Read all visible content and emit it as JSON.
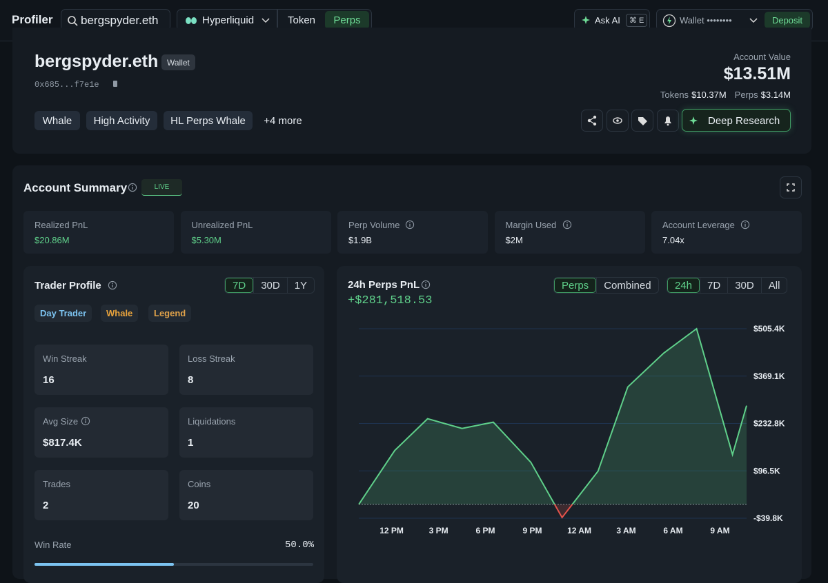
{
  "nav": {
    "brand": "Profiler",
    "search": "bergspyder.eth",
    "chain": "Hyperliquid",
    "tabs": [
      "Token",
      "Perps"
    ],
    "ask_ai": "Ask AI",
    "shortcut": "⌘ E",
    "wallet": "Wallet ••••••••",
    "deposit": "Deposit"
  },
  "profile": {
    "name": "bergspyder.eth",
    "badge": "Wallet",
    "address": "0x685...f7e1e",
    "tags": [
      "Whale",
      "High Activity",
      "HL Perps Whale",
      "+4 more"
    ],
    "account_value_label": "Account Value",
    "account_value": "$13.51M",
    "tokens_label": "Tokens",
    "tokens": "$10.37M",
    "perps_label": "Perps",
    "perps": "$3.14M",
    "deep_research": "Deep Research"
  },
  "summary": {
    "title": "Account Summary",
    "live": "LIVE",
    "stats": [
      {
        "label": "Realized PnL",
        "value": "$20.86M"
      },
      {
        "label": "Unrealized PnL",
        "value": "$5.30M"
      },
      {
        "label": "Perp Volume",
        "value": "$1.9B"
      },
      {
        "label": "Margin Used",
        "value": "$2M"
      },
      {
        "label": "Account Leverage",
        "value": "7.04x"
      }
    ]
  },
  "trader_profile": {
    "title": "Trader Profile",
    "periods": [
      "7D",
      "30D",
      "1Y"
    ],
    "badges": [
      "Day Trader",
      "Whale",
      "Legend"
    ],
    "stats": [
      {
        "label": "Win Streak",
        "value": "16"
      },
      {
        "label": "Loss Streak",
        "value": "8"
      },
      {
        "label": "Avg Size",
        "value": "$817.4K"
      },
      {
        "label": "Liquidations",
        "value": "1"
      },
      {
        "label": "Trades",
        "value": "2"
      },
      {
        "label": "Coins",
        "value": "20"
      }
    ],
    "win_rate_label": "Win Rate",
    "win_rate": {
      "value": 50,
      "label": "50.0%"
    }
  },
  "chart_data": {
    "type": "line",
    "title": "24h Perps PnL",
    "total": "+$281,518.53",
    "modes": [
      "Perps",
      "Combined"
    ],
    "periods": [
      "24h",
      "7D",
      "30D",
      "All"
    ],
    "x": [
      -2.1,
      0.2,
      2.3,
      4.5,
      6.5,
      8.9,
      10.9,
      13.2,
      15.1,
      17.4,
      19.5,
      21.8,
      22.7
    ],
    "values": [
      0,
      155000,
      246400,
      218600,
      236500,
      121200,
      -37800,
      95400,
      337800,
      435200,
      505400,
      143100,
      284100
    ],
    "color": "#5fd08a",
    "negative_color": "#e5534b",
    "xlim": [
      -2.1,
      22.7
    ],
    "ylim": [
      -39800,
      505400
    ],
    "xticks": [
      {
        "value": 0,
        "label": "12 PM"
      },
      {
        "value": 3,
        "label": "3 PM"
      },
      {
        "value": 6,
        "label": "6 PM"
      },
      {
        "value": 9,
        "label": "9 PM"
      },
      {
        "value": 12,
        "label": "12 AM"
      },
      {
        "value": 15,
        "label": "3 AM"
      },
      {
        "value": 18,
        "label": "6 AM"
      },
      {
        "value": 21,
        "label": "9 AM"
      }
    ],
    "yticks": [
      {
        "value": -39800,
        "label": "-$39.8K"
      },
      {
        "value": 96500,
        "label": "$96.5K"
      },
      {
        "value": 232800,
        "label": "$232.8K"
      },
      {
        "value": 369100,
        "label": "$369.1K"
      },
      {
        "value": 505400,
        "label": "$505.4K"
      }
    ],
    "grid": true
  }
}
